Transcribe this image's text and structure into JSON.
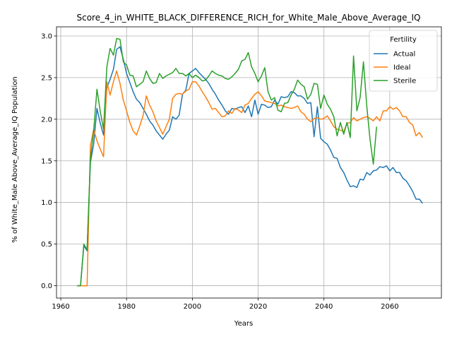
{
  "chart_data": {
    "type": "line",
    "title": "Score_4_in_WHITE_BLACK_DIFFERENCE_RICH_for_White_Male_Above_Average_IQ",
    "xlabel": "Years",
    "ylabel": "% of White_Male Above_Average_IQ Population",
    "xlim": [
      1958.7,
      2075.7
    ],
    "ylim": [
      -0.148,
      3.11
    ],
    "xticks": [
      1960,
      1980,
      2000,
      2020,
      2040,
      2060
    ],
    "xtick_labels": [
      "1960",
      "1980",
      "2000",
      "2020",
      "2040",
      "2060"
    ],
    "yticks": [
      0.0,
      0.5,
      1.0,
      1.5,
      2.0,
      2.5,
      3.0
    ],
    "ytick_labels": [
      "0.0",
      "0.5",
      "1.0",
      "1.5",
      "2.0",
      "2.5",
      "3.0"
    ],
    "grid": true,
    "legend": {
      "title": "Fertility",
      "position": "top-right"
    },
    "series": [
      {
        "name": "Actual",
        "color": "#1f77b4",
        "x": [
          1965,
          1966,
          1967,
          1968,
          1969,
          1970,
          1971,
          1972,
          1973,
          1974,
          1975,
          1976,
          1977,
          1978,
          1979,
          1980,
          1981,
          1982,
          1983,
          1984,
          1985,
          1986,
          1987,
          1988,
          1989,
          1990,
          1991,
          1992,
          1993,
          1994,
          1995,
          1996,
          1997,
          1998,
          1999,
          2000,
          2001,
          2002,
          2003,
          2004,
          2005,
          2006,
          2007,
          2008,
          2009,
          2010,
          2011,
          2012,
          2013,
          2014,
          2015,
          2016,
          2017,
          2018,
          2019,
          2020,
          2021,
          2022,
          2023,
          2024,
          2025,
          2026,
          2027,
          2028,
          2029,
          2030,
          2031,
          2032,
          2033,
          2034,
          2035,
          2036,
          2037,
          2038,
          2039,
          2040,
          2041,
          2042,
          2043,
          2044,
          2045,
          2046,
          2047,
          2048,
          2049,
          2050,
          2051,
          2052,
          2053,
          2054,
          2055,
          2056,
          2057,
          2058,
          2059,
          2060,
          2061,
          2062,
          2063,
          2064,
          2065,
          2066,
          2067,
          2068,
          2069,
          2070
        ],
        "y": [
          0.0,
          0.0,
          0.48,
          0.42,
          1.48,
          1.7,
          2.13,
          1.95,
          1.81,
          2.38,
          2.48,
          2.6,
          2.84,
          2.87,
          2.72,
          2.55,
          2.44,
          2.33,
          2.24,
          2.2,
          2.13,
          2.06,
          1.98,
          1.93,
          1.86,
          1.81,
          1.76,
          1.82,
          1.87,
          2.03,
          2.0,
          2.05,
          2.3,
          2.35,
          2.55,
          2.58,
          2.61,
          2.56,
          2.52,
          2.48,
          2.43,
          2.36,
          2.3,
          2.23,
          2.17,
          2.1,
          2.06,
          2.13,
          2.12,
          2.14,
          2.15,
          2.08,
          2.16,
          2.03,
          2.23,
          2.06,
          2.18,
          2.17,
          2.14,
          2.15,
          2.23,
          2.18,
          2.27,
          2.26,
          2.27,
          2.33,
          2.32,
          2.28,
          2.28,
          2.25,
          2.19,
          2.2,
          1.79,
          2.15,
          1.77,
          1.73,
          1.7,
          1.63,
          1.54,
          1.53,
          1.42,
          1.36,
          1.27,
          1.19,
          1.2,
          1.18,
          1.28,
          1.27,
          1.36,
          1.33,
          1.38,
          1.39,
          1.43,
          1.42,
          1.44,
          1.38,
          1.42,
          1.36,
          1.36,
          1.29,
          1.26,
          1.2,
          1.13,
          1.04,
          1.04,
          0.99
        ]
      },
      {
        "name": "Ideal",
        "color": "#ff7f0e",
        "x": [
          1965,
          1966,
          1967,
          1968,
          1969,
          1970,
          1971,
          1972,
          1973,
          1974,
          1975,
          1976,
          1977,
          1978,
          1979,
          1980,
          1981,
          1982,
          1983,
          1984,
          1985,
          1986,
          1987,
          1988,
          1989,
          1990,
          1991,
          1992,
          1993,
          1994,
          1995,
          1996,
          1997,
          1998,
          1999,
          2000,
          2001,
          2002,
          2003,
          2004,
          2005,
          2006,
          2007,
          2008,
          2009,
          2010,
          2011,
          2012,
          2013,
          2014,
          2015,
          2016,
          2017,
          2018,
          2019,
          2020,
          2021,
          2022,
          2023,
          2024,
          2025,
          2026,
          2027,
          2028,
          2029,
          2030,
          2031,
          2032,
          2033,
          2034,
          2035,
          2036,
          2037,
          2038,
          2039,
          2040,
          2041,
          2042,
          2043,
          2044,
          2045,
          2046,
          2047,
          2048,
          2049,
          2050,
          2051,
          2052,
          2053,
          2054,
          2055,
          2056,
          2057,
          2058,
          2059,
          2060,
          2061,
          2062,
          2063,
          2064,
          2065,
          2066,
          2067,
          2068,
          2069,
          2070
        ],
        "y": [
          0.0,
          0.0,
          0.0,
          0.0,
          1.68,
          1.88,
          1.74,
          1.64,
          1.55,
          2.45,
          2.29,
          2.45,
          2.58,
          2.43,
          2.23,
          2.1,
          1.96,
          1.86,
          1.81,
          1.92,
          2.04,
          2.28,
          2.17,
          2.09,
          1.98,
          1.9,
          1.82,
          1.91,
          2.0,
          2.25,
          2.3,
          2.31,
          2.3,
          2.34,
          2.36,
          2.45,
          2.45,
          2.4,
          2.33,
          2.27,
          2.2,
          2.12,
          2.13,
          2.08,
          2.03,
          2.04,
          2.1,
          2.07,
          2.13,
          2.11,
          2.08,
          2.17,
          2.19,
          2.25,
          2.3,
          2.33,
          2.28,
          2.22,
          2.21,
          2.2,
          2.19,
          2.16,
          2.17,
          2.15,
          2.14,
          2.13,
          2.14,
          2.16,
          2.09,
          2.06,
          2.0,
          1.97,
          2.01,
          2.02,
          2.0,
          2.01,
          2.04,
          1.98,
          1.91,
          1.88,
          1.87,
          1.85,
          1.95,
          1.96,
          2.02,
          1.98,
          2.0,
          2.02,
          2.03,
          2.01,
          1.98,
          2.03,
          1.98,
          2.1,
          2.1,
          2.15,
          2.12,
          2.14,
          2.1,
          2.03,
          2.03,
          1.96,
          1.93,
          1.8,
          1.84,
          1.78
        ]
      },
      {
        "name": "Sterile",
        "color": "#2ca02c",
        "x": [
          1965,
          1966,
          1967,
          1968,
          1969,
          1970,
          1971,
          1972,
          1973,
          1974,
          1975,
          1976,
          1977,
          1978,
          1979,
          1980,
          1981,
          1982,
          1983,
          1984,
          1985,
          1986,
          1987,
          1988,
          1989,
          1990,
          1991,
          1992,
          1993,
          1994,
          1995,
          1996,
          1997,
          1998,
          1999,
          2000,
          2001,
          2002,
          2003,
          2004,
          2005,
          2006,
          2007,
          2008,
          2009,
          2010,
          2011,
          2012,
          2013,
          2014,
          2015,
          2016,
          2017,
          2018,
          2019,
          2020,
          2021,
          2022,
          2023,
          2024,
          2025,
          2026,
          2027,
          2028,
          2029,
          2030,
          2031,
          2032,
          2033,
          2034,
          2035,
          2036,
          2037,
          2038,
          2039,
          2040,
          2041,
          2042,
          2043,
          2044,
          2045,
          2046,
          2047,
          2048,
          2049,
          2050,
          2051,
          2052,
          2053,
          2054,
          2055,
          2056
        ],
        "y": [
          0.0,
          0.0,
          0.5,
          0.43,
          1.52,
          1.86,
          2.36,
          2.09,
          1.88,
          2.63,
          2.85,
          2.77,
          2.97,
          2.96,
          2.69,
          2.65,
          2.53,
          2.52,
          2.39,
          2.42,
          2.45,
          2.58,
          2.49,
          2.43,
          2.44,
          2.55,
          2.49,
          2.52,
          2.54,
          2.56,
          2.61,
          2.55,
          2.55,
          2.52,
          2.55,
          2.5,
          2.53,
          2.5,
          2.46,
          2.47,
          2.52,
          2.58,
          2.55,
          2.53,
          2.52,
          2.49,
          2.48,
          2.51,
          2.55,
          2.6,
          2.7,
          2.72,
          2.8,
          2.63,
          2.55,
          2.45,
          2.52,
          2.62,
          2.33,
          2.23,
          2.26,
          2.11,
          2.09,
          2.19,
          2.2,
          2.29,
          2.36,
          2.47,
          2.42,
          2.39,
          2.24,
          2.3,
          2.43,
          2.42,
          2.13,
          2.29,
          2.18,
          2.12,
          2.03,
          1.8,
          1.96,
          1.82,
          1.96,
          1.78,
          2.76,
          2.1,
          2.26,
          2.69,
          2.16,
          1.76,
          1.46,
          1.91
        ]
      }
    ]
  }
}
